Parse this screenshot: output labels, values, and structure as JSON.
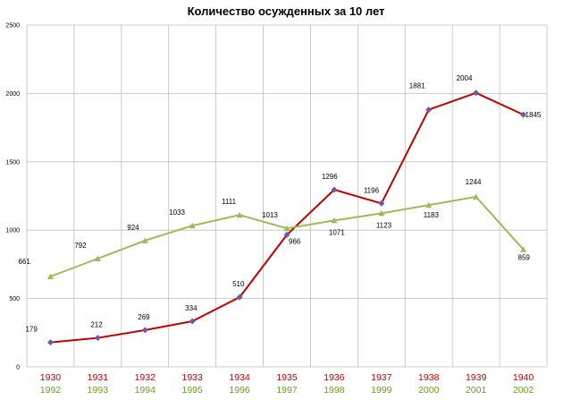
{
  "chart_data": {
    "type": "line",
    "title": "Количество осужденных за 10 лет",
    "ylim": [
      0,
      2500
    ],
    "yticks": [
      0,
      500,
      1000,
      1500,
      2000,
      2500
    ],
    "grid": true,
    "categories_1": [
      "1930",
      "1931",
      "1932",
      "1933",
      "1934",
      "1935",
      "1936",
      "1937",
      "1938",
      "1939",
      "1940"
    ],
    "categories_2": [
      "1992",
      "1993",
      "1994",
      "1995",
      "1996",
      "1997",
      "1998",
      "1999",
      "2000",
      "2001",
      "2002"
    ],
    "series": [
      {
        "values": [
          179,
          212,
          269,
          334,
          510,
          966,
          1296,
          1196,
          1881,
          2004,
          1845
        ],
        "line_color": "#c00000",
        "marker_color": "#7058a8",
        "marker": "diamond",
        "label_color": "#c00000"
      },
      {
        "values": [
          661,
          792,
          924,
          1033,
          1111,
          1013,
          1071,
          1123,
          1183,
          1244,
          859
        ],
        "line_color": "#9bbb59",
        "marker_color": "#9bbb59",
        "marker": "triangle",
        "label_color": "#6aa121"
      }
    ]
  }
}
